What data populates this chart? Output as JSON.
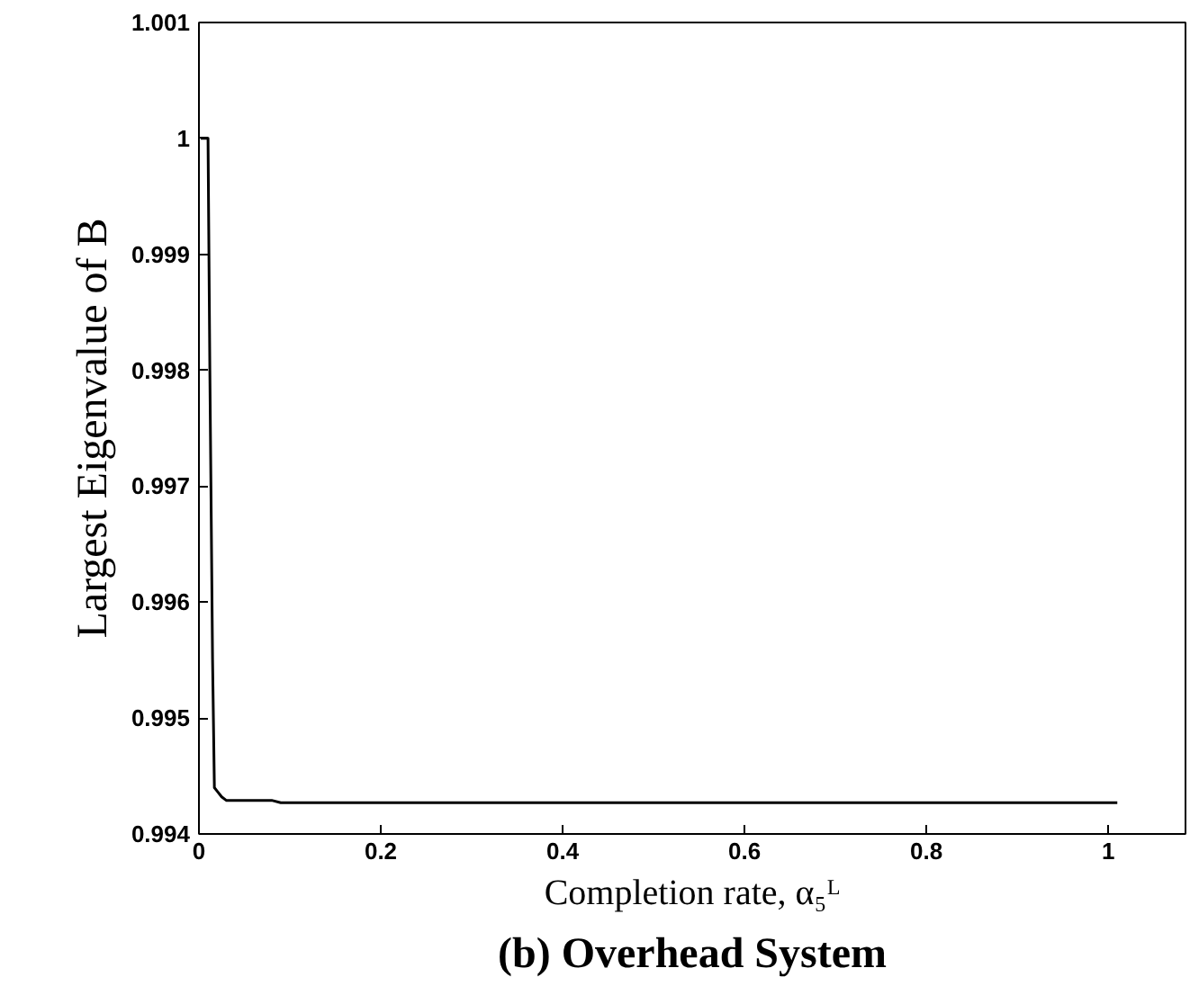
{
  "chart_data": {
    "type": "line",
    "title": "(b) Overhead System",
    "xlabel": "Completion rate, α₅ᴸ",
    "ylabel": "Largest Eigenvalue of B",
    "x": [
      0.002,
      0.01,
      0.012,
      0.015,
      0.017,
      0.02,
      0.025,
      0.03,
      0.08,
      0.09,
      1.01
    ],
    "series": [
      {
        "color": "#000000",
        "values": [
          1.0,
          1.0,
          0.998,
          0.9955,
          0.9944,
          0.99437,
          0.99432,
          0.99429,
          0.99429,
          0.99427,
          0.99427
        ]
      }
    ],
    "xlim": [
      0,
      1.085
    ],
    "ylim": [
      0.994,
      1.001
    ],
    "xticks": [
      0,
      0.2,
      0.4,
      0.6,
      0.8,
      1
    ],
    "yticks": [
      0.994,
      0.995,
      0.996,
      0.997,
      0.998,
      0.999,
      {
        "value": 1,
        "label": "1"
      },
      1.001
    ],
    "grid": false,
    "marker": "none",
    "line_style": "solid"
  }
}
